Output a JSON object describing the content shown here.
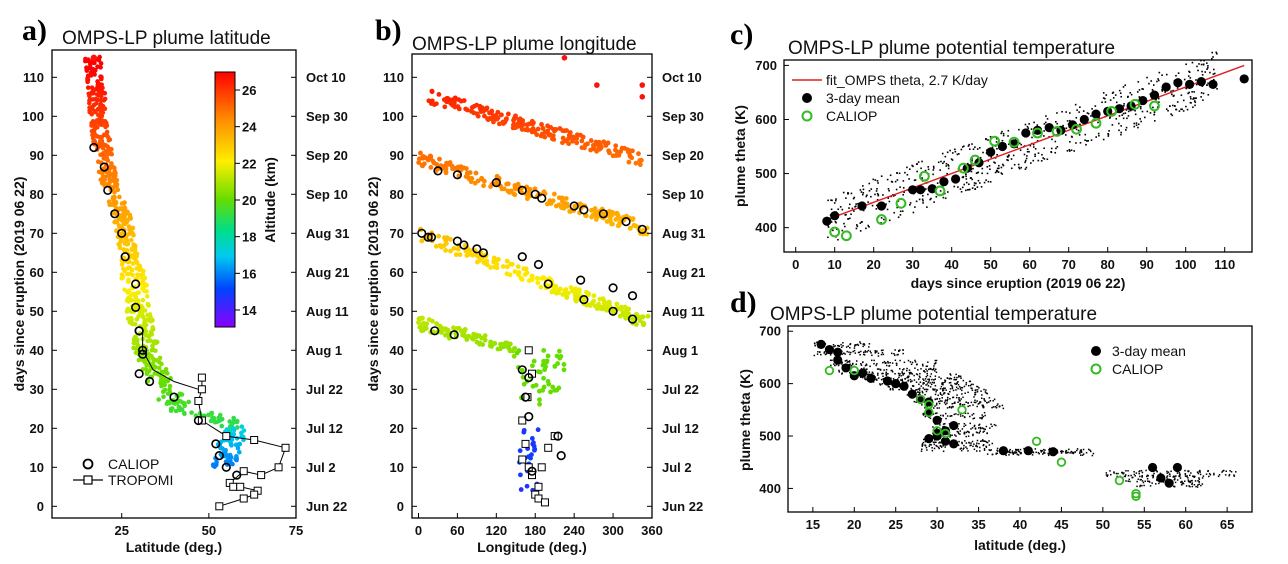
{
  "panels": {
    "a": {
      "label": "a)",
      "title": "OMPS-LP plume latitude",
      "xlabel": "Latitude (deg.)",
      "ylabel": "days since eruption (2019 06 22)"
    },
    "b": {
      "label": "b)",
      "title": "OMPS-LP plume longitude",
      "xlabel": "Longitude (deg.)",
      "ylabel": "days since eruption (2019 06 22)"
    },
    "c": {
      "label": "c)",
      "title": "OMPS-LP plume potential temperature",
      "xlabel": "days since eruption (2019 06 22)",
      "ylabel": "plume theta (K)"
    },
    "d": {
      "label": "d)",
      "title": "OMPS-LP plume potential temperature",
      "xlabel": "latitude (deg.)",
      "ylabel": "plume theta (K)"
    }
  },
  "colorbar": {
    "label": "Altitude (km)",
    "ticks": [
      "26",
      "24",
      "22",
      "20",
      "18",
      "16",
      "14"
    ]
  },
  "date_ticks": [
    "Oct 10",
    "Sep 30",
    "Sep 20",
    "Sep 10",
    "Aug 31",
    "Aug 21",
    "Aug 11",
    "Aug 1",
    "Jul 22",
    "Jul 12",
    "Jul 2",
    "Jun 22"
  ],
  "legend_ab": {
    "caliop": "CALIOP",
    "tropomi": "TROPOMI"
  },
  "legend_c": {
    "fit": "fit_OMPS theta, 2.7 K/day",
    "mean": "3-day mean",
    "caliop": "CALIOP"
  },
  "legend_d": {
    "mean": "3-day mean",
    "caliop": "CALIOP"
  },
  "colors": {
    "fit_line": "#e02020",
    "caliop_green": "#33bb22",
    "mean_marker": "#000000"
  },
  "chart_data": [
    {
      "id": "a",
      "type": "scatter",
      "xlim": [
        5,
        75
      ],
      "ylim": [
        -3,
        117
      ],
      "xticks": [
        25,
        50,
        75
      ],
      "yticks": [
        0,
        10,
        20,
        30,
        40,
        50,
        60,
        70,
        80,
        90,
        100,
        110
      ],
      "caliop": {
        "x": [
          17,
          20,
          21,
          23,
          25,
          26,
          29,
          29,
          30,
          31,
          30,
          30,
          31,
          33,
          40,
          47,
          52,
          53,
          55,
          58
        ],
        "y": [
          92,
          87,
          81,
          75,
          70,
          64,
          57,
          51,
          45,
          40,
          34,
          45,
          39,
          32,
          28,
          22,
          16,
          13,
          10,
          8
        ]
      },
      "tropomi": {
        "x": [
          48,
          48,
          47,
          48,
          55,
          63,
          72,
          70,
          65,
          60,
          56,
          57,
          59,
          64,
          63,
          60,
          53
        ],
        "y": [
          33,
          30,
          27,
          22,
          18,
          17,
          15,
          10,
          8,
          9,
          6,
          5,
          5,
          4,
          3,
          2,
          0
        ]
      },
      "omps_core_points": {
        "days": [
          115,
          110,
          105,
          100,
          95,
          90,
          85,
          80,
          75,
          70,
          65,
          60,
          55,
          50,
          45,
          40,
          35,
          30,
          25,
          22,
          20,
          15,
          10
        ],
        "lat": [
          17,
          17,
          18,
          18,
          19,
          20,
          21,
          23,
          25,
          26,
          27,
          28,
          29,
          30,
          31,
          32,
          34,
          37,
          42,
          55,
          58,
          56,
          54
        ]
      }
    },
    {
      "id": "b",
      "type": "scatter",
      "xlim": [
        -10,
        360
      ],
      "ylim": [
        -3,
        117
      ],
      "xticks": [
        0,
        60,
        120,
        180,
        240,
        300,
        360
      ],
      "yticks": [
        0,
        10,
        20,
        30,
        40,
        50,
        60,
        70,
        80,
        90,
        100,
        110
      ],
      "omps_bands": [
        {
          "lon": [
            15,
            345
          ],
          "day": [
            105,
            89
          ]
        },
        {
          "lon": [
            0,
            355
          ],
          "day": [
            89,
            71
          ]
        },
        {
          "lon": [
            0,
            355
          ],
          "day": [
            70,
            47
          ]
        },
        {
          "lon": [
            0,
            150
          ],
          "day": [
            47,
            40
          ]
        }
      ],
      "caliop": {
        "x": [
          30,
          60,
          120,
          160,
          180,
          190,
          240,
          255,
          285,
          320,
          345,
          20,
          60,
          90,
          160,
          185,
          250,
          300,
          330,
          5,
          15,
          70,
          100,
          200,
          255,
          300,
          330,
          25,
          55,
          160,
          170,
          165,
          170,
          175,
          215,
          220
        ],
        "y": [
          86,
          85,
          83,
          81,
          80,
          79,
          77,
          76,
          75,
          73,
          71,
          69,
          68,
          66,
          64,
          62,
          58,
          56,
          54,
          70,
          69,
          67,
          65,
          57,
          53,
          50,
          48,
          45,
          44,
          35,
          33,
          28,
          23,
          9,
          18,
          13
        ]
      },
      "tropomi": {
        "x": [
          170,
          175,
          168,
          160,
          165,
          160,
          170,
          175,
          210,
          200,
          190,
          185,
          180,
          185,
          195
        ],
        "y": [
          40,
          34,
          28,
          22,
          16,
          12,
          10,
          8,
          18,
          15,
          10,
          5,
          3,
          2,
          1
        ]
      }
    },
    {
      "id": "c",
      "type": "scatter",
      "xlim": [
        -3,
        117
      ],
      "ylim": [
        355,
        710
      ],
      "xticks": [
        0,
        10,
        20,
        30,
        40,
        50,
        60,
        70,
        80,
        90,
        100,
        110
      ],
      "yticks": [
        400,
        500,
        600,
        700
      ],
      "fit": {
        "x": [
          8,
          115
        ],
        "y": [
          415,
          700
        ],
        "slope_label": "2.7 K/day"
      },
      "mean_3day": {
        "x": [
          8,
          10,
          17,
          22,
          30,
          32,
          35,
          38,
          41,
          44,
          47,
          50,
          53,
          56,
          59,
          62,
          65,
          68,
          71,
          74,
          77,
          80,
          83,
          86,
          89,
          92,
          95,
          98,
          101,
          104,
          107,
          115
        ],
        "y": [
          412,
          422,
          440,
          440,
          470,
          470,
          472,
          485,
          490,
          510,
          520,
          540,
          550,
          555,
          575,
          580,
          585,
          580,
          590,
          600,
          610,
          615,
          620,
          625,
          635,
          645,
          660,
          668,
          665,
          670,
          665,
          675
        ]
      },
      "caliop": {
        "x": [
          10,
          13,
          22,
          27,
          33,
          37,
          43,
          46,
          51,
          56,
          62,
          67,
          72,
          77,
          81,
          87,
          92
        ],
        "y": [
          392,
          385,
          415,
          445,
          495,
          468,
          510,
          525,
          560,
          558,
          575,
          578,
          582,
          593,
          615,
          628,
          625
        ]
      }
    },
    {
      "id": "d",
      "type": "scatter",
      "xlim": [
        12,
        68
      ],
      "ylim": [
        355,
        710
      ],
      "xticks": [
        15,
        20,
        25,
        30,
        35,
        40,
        45,
        50,
        55,
        60,
        65
      ],
      "yticks": [
        400,
        500,
        600,
        700
      ],
      "mean_3day": {
        "x": [
          16,
          17,
          18,
          18,
          19,
          20,
          21,
          22,
          24,
          25,
          26,
          27,
          28,
          29,
          29,
          30,
          31,
          32,
          30,
          31,
          32,
          29,
          30,
          38,
          41,
          44,
          56,
          57,
          58,
          59
        ],
        "y": [
          675,
          665,
          660,
          645,
          630,
          615,
          620,
          610,
          605,
          600,
          595,
          580,
          570,
          565,
          545,
          530,
          510,
          485,
          500,
          490,
          520,
          495,
          505,
          472,
          472,
          470,
          440,
          420,
          410,
          440
        ]
      },
      "caliop": {
        "x": [
          17,
          20,
          28,
          29,
          29,
          30,
          31,
          33,
          42,
          45,
          52,
          54,
          54
        ],
        "y": [
          625,
          625,
          570,
          560,
          545,
          510,
          505,
          550,
          490,
          450,
          415,
          390,
          385
        ]
      }
    }
  ]
}
